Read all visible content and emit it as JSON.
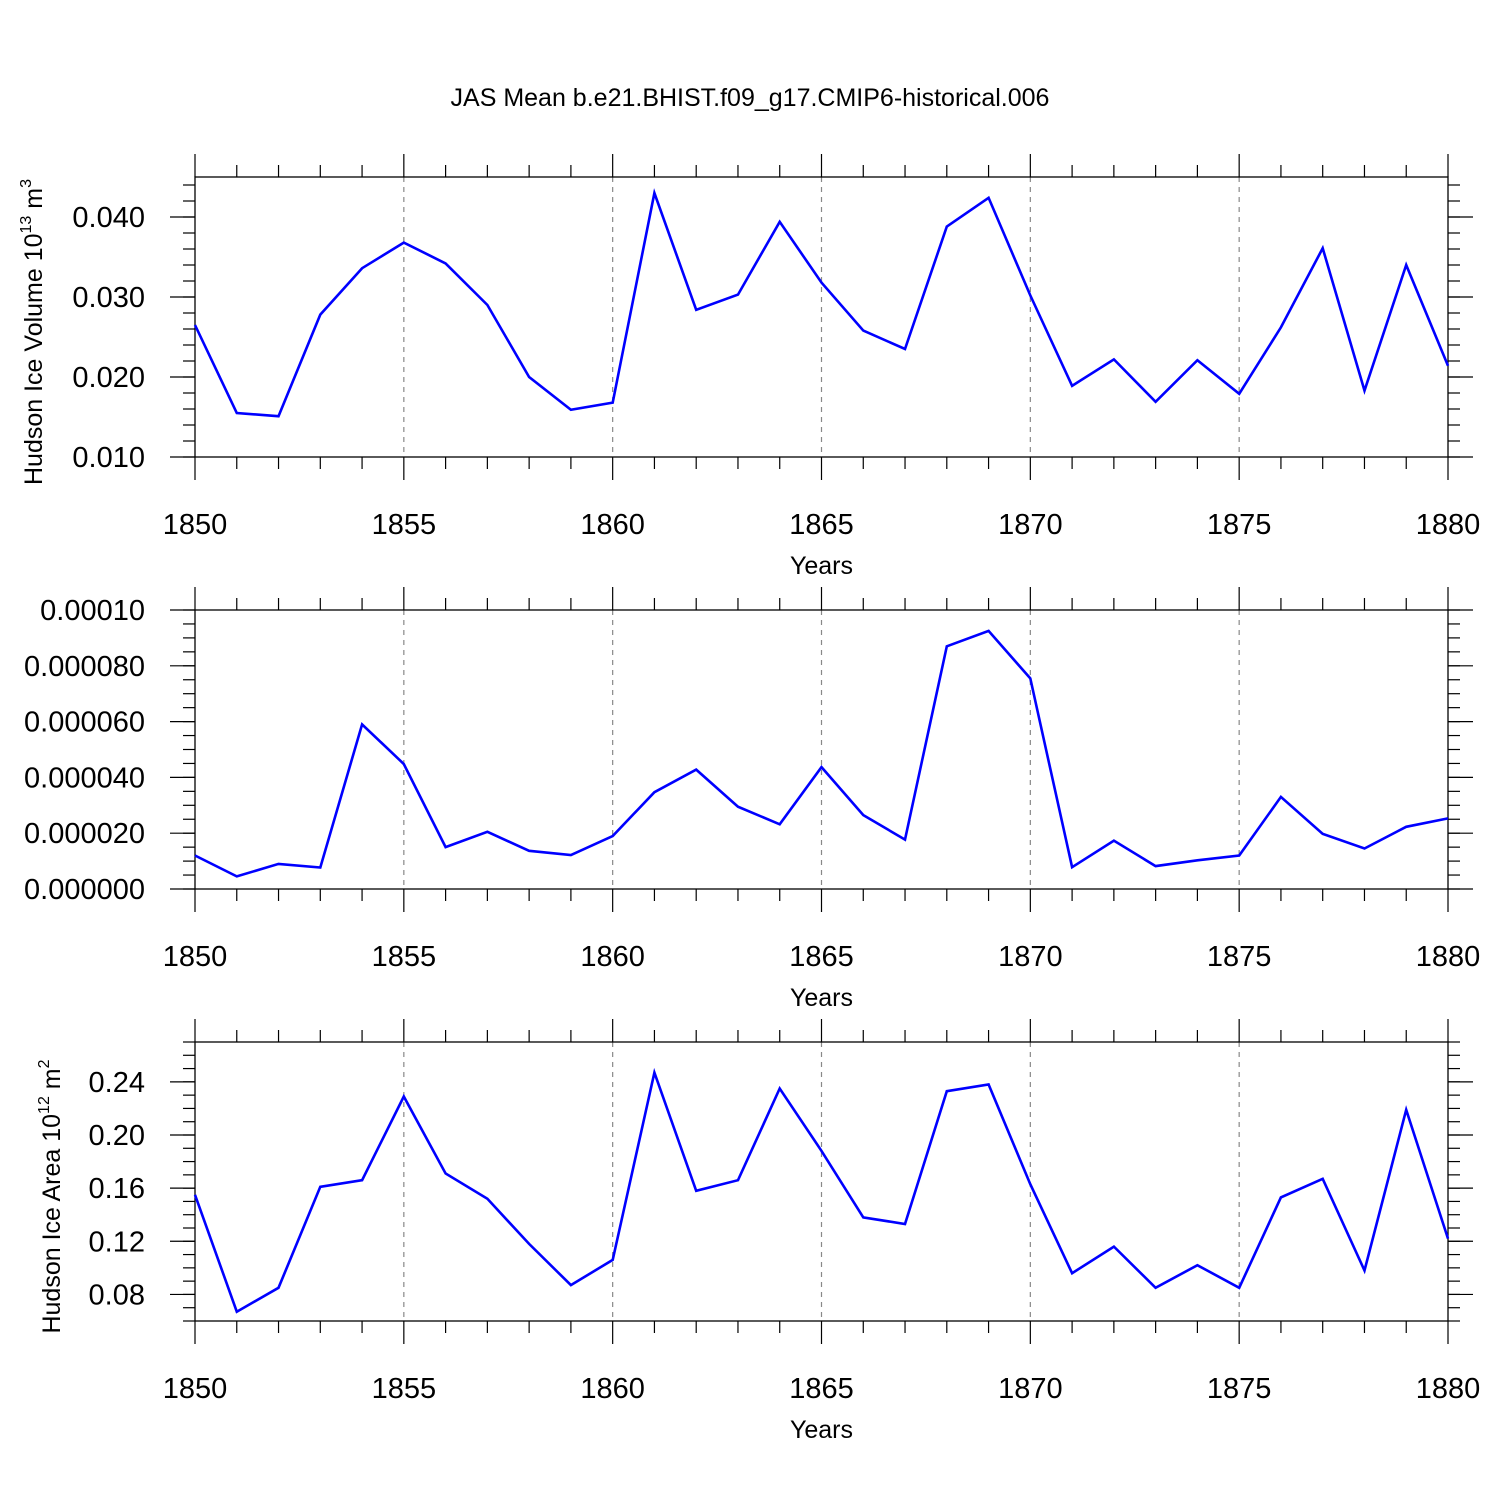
{
  "title": "JAS Mean b.e21.BHIST.f09_g17.CMIP6-historical.006",
  "chart_data": [
    {
      "type": "line",
      "ylabel": "Hudson Ice Volume 10",
      "ylabel_sup": "13",
      "ylabel_unit": " m",
      "ylabel_unit_sup": "3",
      "xlabel": "Years",
      "xlim": [
        1850,
        1880
      ],
      "ylim": [
        0.01,
        0.045
      ],
      "yticks": [
        0.01,
        0.02,
        0.03,
        0.04
      ],
      "ytick_labels": [
        "0.010",
        "0.020",
        "0.030",
        "0.040"
      ],
      "yminor_step": 0.002,
      "xticks": [
        1850,
        1855,
        1860,
        1865,
        1870,
        1875,
        1880
      ],
      "xtick_labels": [
        "1850",
        "1855",
        "1860",
        "1865",
        "1870",
        "1875",
        "1880"
      ],
      "grid": "vertical dashed at major x ticks",
      "series_color": "#0000ff",
      "x": [
        1850,
        1851,
        1852,
        1853,
        1854,
        1855,
        1856,
        1857,
        1858,
        1859,
        1860,
        1861,
        1862,
        1863,
        1864,
        1865,
        1866,
        1867,
        1868,
        1869,
        1870,
        1871,
        1872,
        1873,
        1874,
        1875,
        1876,
        1877,
        1878,
        1879,
        1880
      ],
      "values": [
        0.0265,
        0.0155,
        0.0151,
        0.0278,
        0.0336,
        0.0368,
        0.0342,
        0.029,
        0.02,
        0.0159,
        0.0168,
        0.043,
        0.0284,
        0.0303,
        0.0394,
        0.0318,
        0.0258,
        0.0235,
        0.0388,
        0.0424,
        0.0302,
        0.0189,
        0.0222,
        0.0169,
        0.0221,
        0.0179,
        0.0262,
        0.0361,
        0.0183,
        0.034,
        0.0214
      ]
    },
    {
      "type": "line",
      "ylabel": "",
      "xlabel": "Years",
      "xlim": [
        1850,
        1880
      ],
      "ylim": [
        0.0,
        0.0001
      ],
      "yticks": [
        0.0,
        2e-05,
        4e-05,
        6e-05,
        8e-05,
        0.0001
      ],
      "ytick_labels": [
        "0.000000",
        "0.000020",
        "0.000040",
        "0.000060",
        "0.000080",
        "0.00010"
      ],
      "yminor_step": 5e-06,
      "xticks": [
        1850,
        1855,
        1860,
        1865,
        1870,
        1875,
        1880
      ],
      "xtick_labels": [
        "1850",
        "1855",
        "1860",
        "1865",
        "1870",
        "1875",
        "1880"
      ],
      "grid": "vertical dashed at major x ticks",
      "series_color": "#0000ff",
      "x": [
        1850,
        1851,
        1852,
        1853,
        1854,
        1855,
        1856,
        1857,
        1858,
        1859,
        1860,
        1861,
        1862,
        1863,
        1864,
        1865,
        1866,
        1867,
        1868,
        1869,
        1870,
        1871,
        1872,
        1873,
        1874,
        1875,
        1876,
        1877,
        1878,
        1879,
        1880
      ],
      "values": [
        1.2e-05,
        4.5e-06,
        9e-06,
        7.7e-06,
        5.9e-05,
        4.48e-05,
        1.5e-05,
        2.05e-05,
        1.37e-05,
        1.22e-05,
        1.9e-05,
        3.47e-05,
        4.28e-05,
        2.95e-05,
        2.32e-05,
        4.37e-05,
        2.65e-05,
        1.77e-05,
        8.7e-05,
        9.25e-05,
        7.55e-05,
        7.8e-06,
        1.73e-05,
        8.2e-06,
        1.03e-05,
        1.2e-05,
        3.3e-05,
        1.98e-05,
        1.45e-05,
        2.23e-05,
        2.53e-05
      ]
    },
    {
      "type": "line",
      "ylabel": "Hudson Ice Area 10",
      "ylabel_sup": "12",
      "ylabel_unit": " m",
      "ylabel_unit_sup": "2",
      "xlabel": "Years",
      "xlim": [
        1850,
        1880
      ],
      "ylim": [
        0.06,
        0.27
      ],
      "yticks": [
        0.08,
        0.12,
        0.16,
        0.2,
        0.24
      ],
      "ytick_labels": [
        "0.08",
        "0.12",
        "0.16",
        "0.20",
        "0.24"
      ],
      "yminor_step": 0.01,
      "xticks": [
        1850,
        1855,
        1860,
        1865,
        1870,
        1875,
        1880
      ],
      "xtick_labels": [
        "1850",
        "1855",
        "1860",
        "1865",
        "1870",
        "1875",
        "1880"
      ],
      "grid": "vertical dashed at major x ticks",
      "series_color": "#0000ff",
      "x": [
        1850,
        1851,
        1852,
        1853,
        1854,
        1855,
        1856,
        1857,
        1858,
        1859,
        1860,
        1861,
        1862,
        1863,
        1864,
        1865,
        1866,
        1867,
        1868,
        1869,
        1870,
        1871,
        1872,
        1873,
        1874,
        1875,
        1876,
        1877,
        1878,
        1879,
        1880
      ],
      "values": [
        0.155,
        0.067,
        0.085,
        0.161,
        0.166,
        0.229,
        0.171,
        0.152,
        0.118,
        0.087,
        0.106,
        0.247,
        0.158,
        0.166,
        0.235,
        0.188,
        0.138,
        0.133,
        0.233,
        0.238,
        0.163,
        0.096,
        0.116,
        0.085,
        0.102,
        0.085,
        0.153,
        0.167,
        0.098,
        0.219,
        0.122
      ]
    }
  ]
}
